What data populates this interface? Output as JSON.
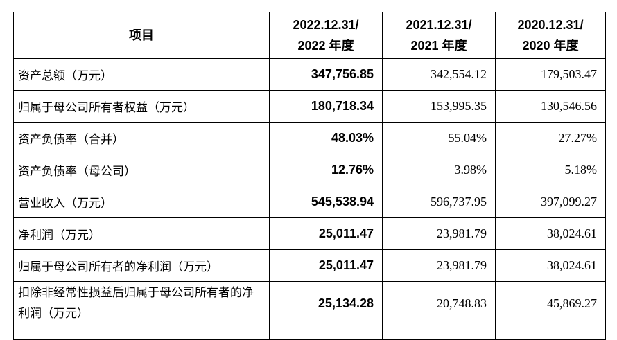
{
  "table": {
    "headers": [
      {
        "line1": "项目",
        "line2": ""
      },
      {
        "line1": "2022.12.31/",
        "line2": "2022 年度"
      },
      {
        "line1": "2021.12.31/",
        "line2": "2021 年度"
      },
      {
        "line1": "2020.12.31/",
        "line2": "2020 年度"
      }
    ],
    "rows": [
      [
        "资产总额（万元）",
        "347,756.85",
        "342,554.12",
        "179,503.47"
      ],
      [
        "归属于母公司所有者权益（万元）",
        "180,718.34",
        "153,995.35",
        "130,546.56"
      ],
      [
        "资产负债率（合并）",
        "48.03%",
        "55.04%",
        "27.27%"
      ],
      [
        "资产负债率（母公司）",
        "12.76%",
        "3.98%",
        "5.18%"
      ],
      [
        "营业收入（万元）",
        "545,538.94",
        "596,737.95",
        "397,099.27"
      ],
      [
        "净利润（万元）",
        "25,011.47",
        "23,981.79",
        "38,024.61"
      ],
      [
        "归属于母公司所有者的净利润（万元）",
        "25,011.47",
        "23,981.79",
        "38,024.61"
      ],
      [
        "扣除非经常性损益后归属于母公司所有者的净利润（万元）",
        "25,134.28",
        "20,748.83",
        "45,869.27"
      ]
    ]
  }
}
